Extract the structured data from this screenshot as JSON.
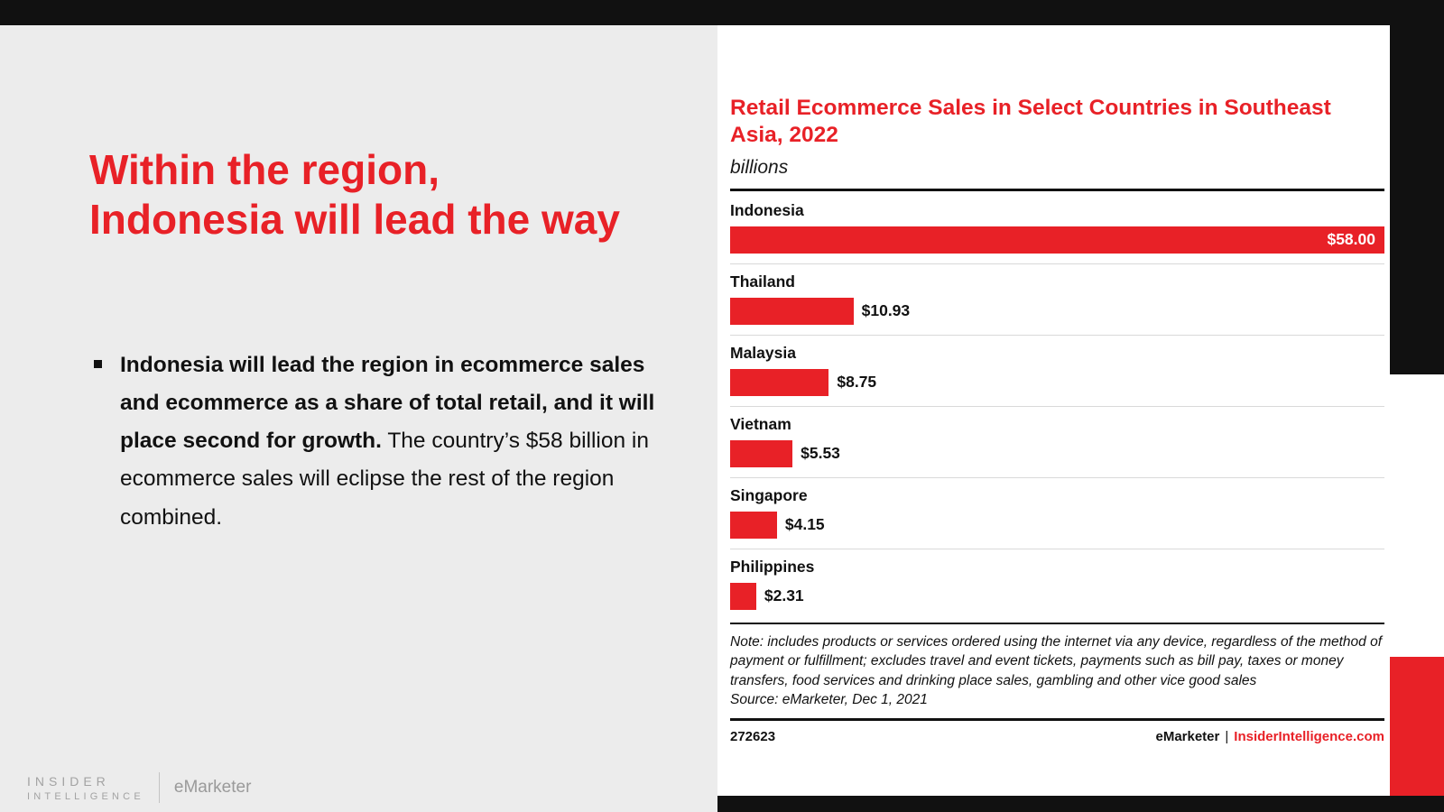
{
  "accent_color": "#e82127",
  "slide": {
    "title": "Within the region, Indonesia will lead the way",
    "bullet_bold": "Indonesia will lead the region in ecommerce sales and ecommerce as a share of total retail, and it will place second for growth.",
    "bullet_rest": " The country’s $58 billion in ecommerce sales will eclipse the rest of the region combined."
  },
  "footer_logo": {
    "line1": "INSIDER",
    "line2": "INTELLIGENCE",
    "brand": "eMarketer"
  },
  "chart_header": {
    "title": "Retail Ecommerce Sales in Select Countries in Southeast Asia, 2022",
    "subtitle": "billions"
  },
  "chart_footer": {
    "note": "Note: includes products or services ordered using the internet via any device, regardless of the method of payment or fulfillment; excludes travel and event tickets, payments such as bill pay, taxes or money transfers, food services and drinking place sales, gambling and other vice good sales",
    "source": "Source: eMarketer, Dec 1, 2021",
    "chart_id": "272623",
    "brand_left": "eMarketer",
    "brand_sep": "|",
    "brand_right": "InsiderIntelligence.com"
  },
  "chart_data": {
    "type": "bar",
    "orientation": "horizontal",
    "title": "Retail Ecommerce Sales in Select Countries in Southeast Asia, 2022",
    "unit": "billions",
    "categories": [
      "Indonesia",
      "Thailand",
      "Malaysia",
      "Vietnam",
      "Singapore",
      "Philippines"
    ],
    "values": [
      58.0,
      10.93,
      8.75,
      5.53,
      4.15,
      2.31
    ],
    "value_labels": [
      "$58.00",
      "$10.93",
      "$8.75",
      "$5.53",
      "$4.15",
      "$2.31"
    ],
    "value_inside": [
      true,
      false,
      false,
      false,
      false,
      false
    ],
    "xlim": [
      0,
      58
    ],
    "bar_color": "#e82127",
    "grid": false,
    "legend": "none"
  }
}
